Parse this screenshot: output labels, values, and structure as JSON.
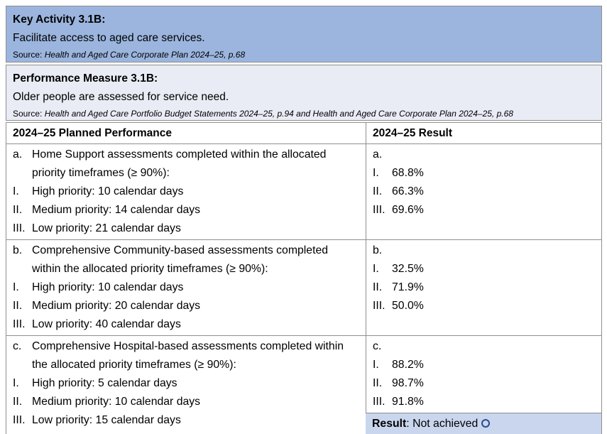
{
  "key_activity": {
    "title": "Key Activity 3.1B:",
    "description": "Facilitate access to aged care services.",
    "source_label": "Source: ",
    "source": "Health and Aged Care Corporate Plan 2024–25, p.68"
  },
  "performance_measure": {
    "title": "Performance Measure 3.1B:",
    "description": "Older people are assessed for service need.",
    "source_label": "Source: ",
    "source": "Health and Aged Care Portfolio Budget Statements 2024–25, p.94 and Health and Aged Care Corporate Plan 2024–25, p.68"
  },
  "table": {
    "header_planned": "2024–25 Planned Performance",
    "header_result": "2024–25 Result",
    "rows": [
      {
        "planned": {
          "label": "a.",
          "text": "Home Support assessments completed within the allocated priority timeframes (≥ 90%):",
          "items": [
            {
              "label": "I.",
              "text": "High priority: 10 calendar days"
            },
            {
              "label": "II.",
              "text": "Medium priority: 14 calendar days"
            },
            {
              "label": "III.",
              "text": "Low priority: 21 calendar days"
            }
          ]
        },
        "result": {
          "label": "a.",
          "items": [
            {
              "label": "I.",
              "text": "68.8%"
            },
            {
              "label": "II.",
              "text": "66.3%"
            },
            {
              "label": "III.",
              "text": "69.6%"
            }
          ]
        }
      },
      {
        "planned": {
          "label": "b.",
          "text": "Comprehensive Community-based assessments completed within the allocated priority timeframes (≥ 90%):",
          "items": [
            {
              "label": "I.",
              "text": "High priority: 10 calendar days"
            },
            {
              "label": "II.",
              "text": "Medium priority: 20 calendar days"
            },
            {
              "label": "III.",
              "text": "Low priority: 40 calendar days"
            }
          ]
        },
        "result": {
          "label": "b.",
          "items": [
            {
              "label": "I.",
              "text": "32.5%"
            },
            {
              "label": "II.",
              "text": "71.9%"
            },
            {
              "label": "III.",
              "text": "50.0%"
            }
          ]
        }
      },
      {
        "planned": {
          "label": "c.",
          "text": "Comprehensive Hospital-based assessments completed within the allocated priority timeframes (≥ 90%):",
          "items": [
            {
              "label": "I.",
              "text": "High priority: 5 calendar days"
            },
            {
              "label": "II.",
              "text": "Medium priority: 10 calendar days"
            },
            {
              "label": "III.",
              "text": "Low priority: 15 calendar days"
            }
          ]
        },
        "result": {
          "label": "c.",
          "items": [
            {
              "label": "I.",
              "text": "88.2%"
            },
            {
              "label": "II.",
              "text": "98.7%"
            },
            {
              "label": "III.",
              "text": "91.8%"
            }
          ]
        }
      }
    ],
    "result_status": {
      "label": "Result",
      "separator": ": ",
      "value": "Not achieved",
      "icon": "not-achieved-circle"
    }
  },
  "colors": {
    "key_activity_bg": "#9bb5de",
    "measure_bg": "#e9ecf5",
    "result_row_bg": "#c9d6ee",
    "border": "#8f8f8f",
    "status_circle": "#2c4b8e"
  }
}
